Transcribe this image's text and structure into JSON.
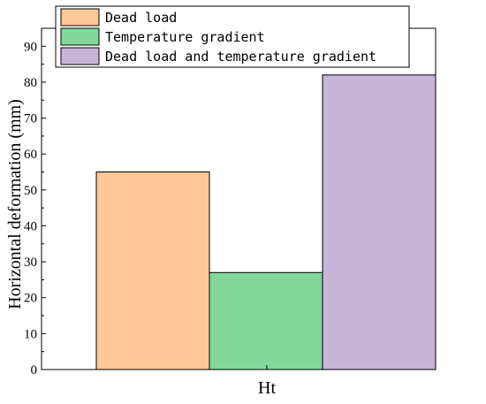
{
  "chart_data": {
    "type": "bar",
    "title": "",
    "xlabel": "Ht",
    "ylabel": "Horizontal deformation (mm)",
    "categories": [
      "Ht"
    ],
    "ylim": [
      0,
      95
    ],
    "yticks": [
      0,
      10,
      20,
      30,
      40,
      50,
      60,
      70,
      80,
      90
    ],
    "grid": false,
    "legend_position": "top",
    "series": [
      {
        "name": "Dead load",
        "values": [
          55
        ],
        "color": "#FFC896"
      },
      {
        "name": "Temperature gradient",
        "values": [
          27
        ],
        "color": "#80D99B"
      },
      {
        "name": "Dead load and temperature gradient",
        "values": [
          82
        ],
        "color": "#C8B3D9"
      }
    ]
  }
}
